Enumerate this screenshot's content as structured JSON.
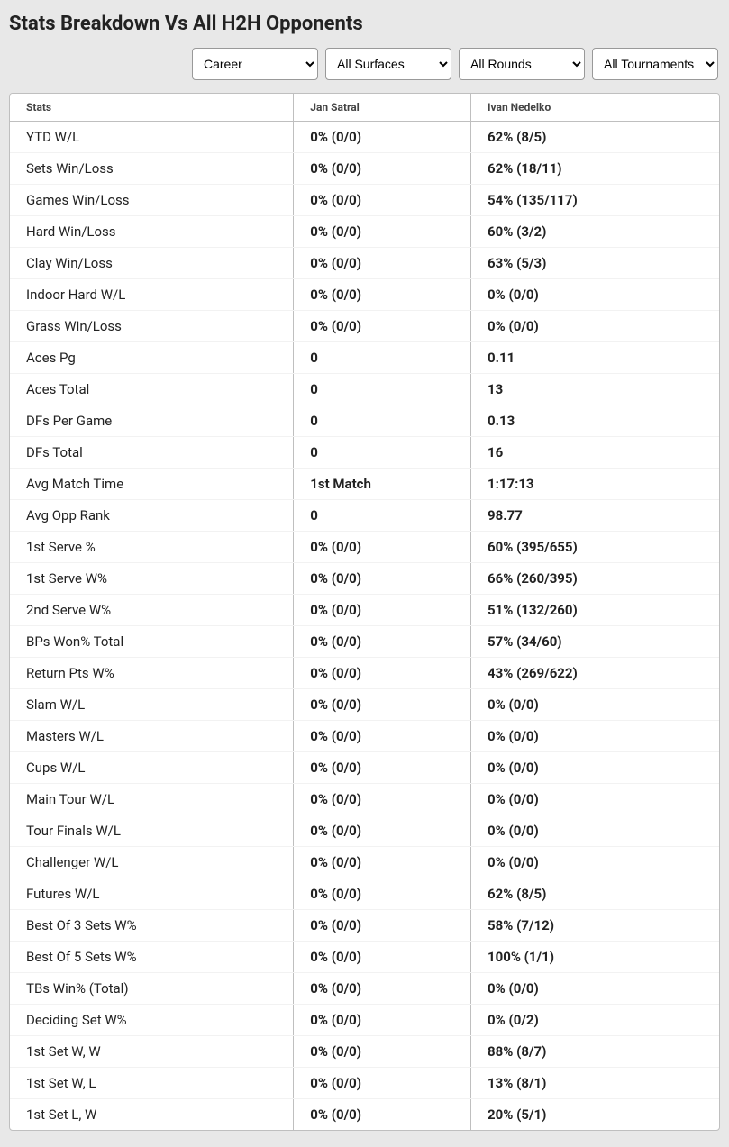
{
  "title": "Stats Breakdown Vs All H2H Opponents",
  "filters": {
    "career": {
      "selected": "Career",
      "options": [
        "Career"
      ]
    },
    "surface": {
      "selected": "All Surfaces",
      "options": [
        "All Surfaces"
      ]
    },
    "round": {
      "selected": "All Rounds",
      "options": [
        "All Rounds"
      ]
    },
    "tourn": {
      "selected": "All Tournaments",
      "options": [
        "All Tournaments"
      ]
    }
  },
  "columns": {
    "stats": "Stats",
    "p1": "Jan Satral",
    "p2": "Ivan Nedelko"
  },
  "rows": [
    {
      "label": "YTD W/L",
      "p1": "0% (0/0)",
      "p2": "62% (8/5)"
    },
    {
      "label": "Sets Win/Loss",
      "p1": "0% (0/0)",
      "p2": "62% (18/11)"
    },
    {
      "label": "Games Win/Loss",
      "p1": "0% (0/0)",
      "p2": "54% (135/117)"
    },
    {
      "label": "Hard Win/Loss",
      "p1": "0% (0/0)",
      "p2": "60% (3/2)"
    },
    {
      "label": "Clay Win/Loss",
      "p1": "0% (0/0)",
      "p2": "63% (5/3)"
    },
    {
      "label": "Indoor Hard W/L",
      "p1": "0% (0/0)",
      "p2": "0% (0/0)"
    },
    {
      "label": "Grass Win/Loss",
      "p1": "0% (0/0)",
      "p2": "0% (0/0)"
    },
    {
      "label": "Aces Pg",
      "p1": "0",
      "p2": "0.11"
    },
    {
      "label": "Aces Total",
      "p1": "0",
      "p2": "13"
    },
    {
      "label": "DFs Per Game",
      "p1": "0",
      "p2": "0.13"
    },
    {
      "label": "DFs Total",
      "p1": "0",
      "p2": "16"
    },
    {
      "label": "Avg Match Time",
      "p1": "1st Match",
      "p2": "1:17:13"
    },
    {
      "label": "Avg Opp Rank",
      "p1": "0",
      "p2": "98.77"
    },
    {
      "label": "1st Serve %",
      "p1": "0% (0/0)",
      "p2": "60% (395/655)"
    },
    {
      "label": "1st Serve W%",
      "p1": "0% (0/0)",
      "p2": "66% (260/395)"
    },
    {
      "label": "2nd Serve W%",
      "p1": "0% (0/0)",
      "p2": "51% (132/260)"
    },
    {
      "label": "BPs Won% Total",
      "p1": "0% (0/0)",
      "p2": "57% (34/60)"
    },
    {
      "label": "Return Pts W%",
      "p1": "0% (0/0)",
      "p2": "43% (269/622)"
    },
    {
      "label": "Slam W/L",
      "p1": "0% (0/0)",
      "p2": "0% (0/0)"
    },
    {
      "label": "Masters W/L",
      "p1": "0% (0/0)",
      "p2": "0% (0/0)"
    },
    {
      "label": "Cups W/L",
      "p1": "0% (0/0)",
      "p2": "0% (0/0)"
    },
    {
      "label": "Main Tour W/L",
      "p1": "0% (0/0)",
      "p2": "0% (0/0)"
    },
    {
      "label": "Tour Finals W/L",
      "p1": "0% (0/0)",
      "p2": "0% (0/0)"
    },
    {
      "label": "Challenger W/L",
      "p1": "0% (0/0)",
      "p2": "0% (0/0)"
    },
    {
      "label": "Futures W/L",
      "p1": "0% (0/0)",
      "p2": "62% (8/5)"
    },
    {
      "label": "Best Of 3 Sets W%",
      "p1": "0% (0/0)",
      "p2": "58% (7/12)"
    },
    {
      "label": "Best Of 5 Sets W%",
      "p1": "0% (0/0)",
      "p2": "100% (1/1)"
    },
    {
      "label": "TBs Win% (Total)",
      "p1": "0% (0/0)",
      "p2": "0% (0/0)"
    },
    {
      "label": "Deciding Set W%",
      "p1": "0% (0/0)",
      "p2": "0% (0/2)"
    },
    {
      "label": "1st Set W, W",
      "p1": "0% (0/0)",
      "p2": "88% (8/7)"
    },
    {
      "label": "1st Set W, L",
      "p1": "0% (0/0)",
      "p2": "13% (8/1)"
    },
    {
      "label": "1st Set L, W",
      "p1": "0% (0/0)",
      "p2": "20% (5/1)"
    }
  ]
}
